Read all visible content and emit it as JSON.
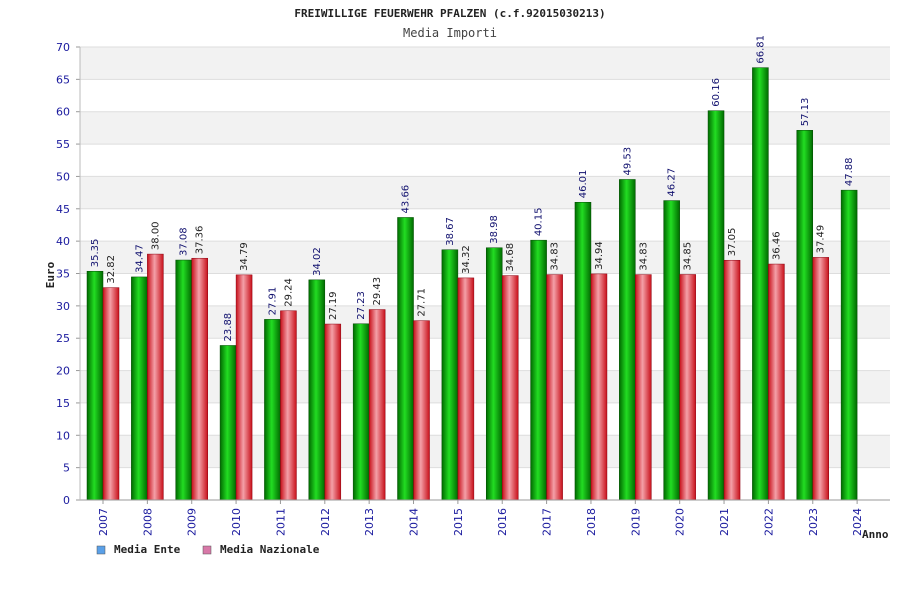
{
  "chart_data": {
    "type": "bar",
    "title": "FREIWILLIGE FEUERWEHR PFALZEN (c.f.92015030213)",
    "subtitle": "Media Importi",
    "ylabel": "Euro",
    "xlabel": "Anno",
    "ylim": [
      0,
      70
    ],
    "yticks": [
      0,
      5,
      10,
      15,
      20,
      25,
      30,
      35,
      40,
      45,
      50,
      55,
      60,
      65,
      70
    ],
    "categories": [
      "2007",
      "2008",
      "2009",
      "2010",
      "2011",
      "2012",
      "2013",
      "2014",
      "2015",
      "2016",
      "2017",
      "2018",
      "2019",
      "2020",
      "2021",
      "2022",
      "2023",
      "2024"
    ],
    "series": [
      {
        "name": "Media Ente",
        "values": [
          35.35,
          34.47,
          37.08,
          23.88,
          27.91,
          34.02,
          27.23,
          43.66,
          38.67,
          38.98,
          40.15,
          46.01,
          49.53,
          46.27,
          60.16,
          66.81,
          57.13,
          47.88
        ],
        "labels": [
          "35.35",
          "34.47",
          "37.08",
          "23.88",
          "27.91",
          "34.02",
          "27.23",
          "43.66",
          "38.67",
          "38.98",
          "40.15",
          "46.01",
          "49.53",
          "46.27",
          "60.16",
          "66.81",
          "57.13",
          "47.88"
        ]
      },
      {
        "name": "Media Nazionale",
        "values": [
          32.82,
          38.0,
          37.36,
          34.79,
          29.24,
          27.19,
          29.43,
          27.71,
          34.32,
          34.68,
          34.83,
          34.94,
          34.83,
          34.85,
          37.05,
          36.46,
          37.49,
          null
        ],
        "labels": [
          "32.82",
          "38.00",
          "37.36",
          "34.79",
          "29.24",
          "27.19",
          "29.43",
          "27.71",
          "34.32",
          "34.68",
          "34.83",
          "34.94",
          "34.83",
          "34.85",
          "37.05",
          "36.46",
          "37.49",
          ""
        ]
      }
    ],
    "legend_position": "bottom-left",
    "grid": true,
    "colors": {
      "ente": "#00b000",
      "ente_legend": "#5aa0e8",
      "nazionale": "#e8303a",
      "nazionale_legend": "#d878a8",
      "band": "#f2f2f2",
      "grid": "#dddddd"
    }
  }
}
